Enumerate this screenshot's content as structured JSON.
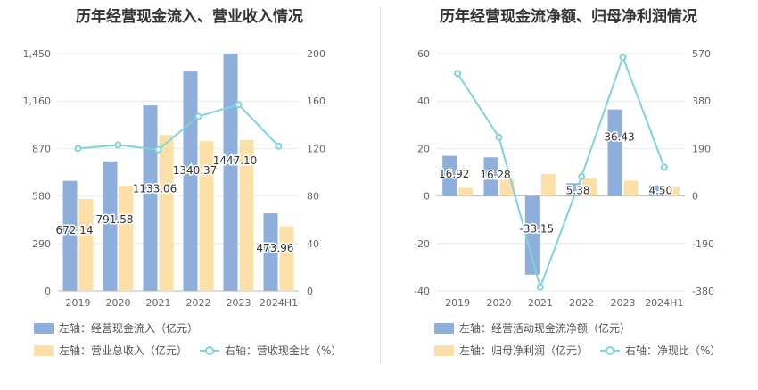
{
  "chart_data": [
    {
      "type": "bar",
      "title": "历年经营现金流入、营业收入情况",
      "categories": [
        "2019",
        "2020",
        "2021",
        "2022",
        "2023",
        "2024H1"
      ],
      "y_left": {
        "ticks": [
          "0",
          "290",
          "580",
          "870",
          "1,160",
          "1,450"
        ],
        "min": 0,
        "max": 1450
      },
      "y_right": {
        "ticks": [
          "0",
          "40",
          "80",
          "120",
          "160",
          "200"
        ],
        "min": 0,
        "max": 200
      },
      "series": [
        {
          "name": "左轴：经营现金流入（亿元）",
          "axis": "left",
          "kind": "bar",
          "color": "#8eaedc",
          "values": [
            672.14,
            791.58,
            1133.06,
            1340.37,
            1447.1,
            473.96
          ],
          "labels": [
            "672.14",
            "791.58",
            "1133.06",
            "1340.37",
            "1447.10",
            "473.96"
          ]
        },
        {
          "name": "左轴：营业总收入（亿元）",
          "axis": "left",
          "kind": "bar",
          "color": "#fde0a8",
          "values": [
            562,
            642,
            953,
            915,
            922,
            393
          ]
        },
        {
          "name": "右轴：营收现金比（%）",
          "axis": "right",
          "kind": "line",
          "color": "#7fd3dc",
          "values": [
            120,
            123,
            119,
            147,
            157,
            122
          ]
        }
      ]
    },
    {
      "type": "bar",
      "title": "历年经营现金流净额、归母净利润情况",
      "categories": [
        "2019",
        "2020",
        "2021",
        "2022",
        "2023",
        "2024H1"
      ],
      "y_left": {
        "ticks": [
          "-40",
          "-20",
          "0",
          "20",
          "40",
          "60"
        ],
        "min": -40,
        "max": 60
      },
      "y_right": {
        "ticks": [
          "-380",
          "-190",
          "0",
          "190",
          "380",
          "570"
        ],
        "min": -380,
        "max": 570
      },
      "series": [
        {
          "name": "左轴：经营活动现金流净额（亿元）",
          "axis": "left",
          "kind": "bar",
          "color": "#8eaedc",
          "values": [
            16.92,
            16.28,
            -33.15,
            5.38,
            36.43,
            4.5
          ],
          "labels": [
            "16.92",
            "16.28",
            "-33.15",
            "5.38",
            "36.43",
            "4.50"
          ]
        },
        {
          "name": "左轴：归母净利润（亿元）",
          "axis": "left",
          "kind": "bar",
          "color": "#fde0a8",
          "values": [
            3.5,
            7.0,
            9.3,
            7.3,
            6.5,
            4.0
          ]
        },
        {
          "name": "右轴：净现比（%）",
          "axis": "right",
          "kind": "line",
          "color": "#7fd3dc",
          "values": [
            490,
            235,
            -365,
            78,
            555,
            115
          ]
        }
      ]
    }
  ]
}
